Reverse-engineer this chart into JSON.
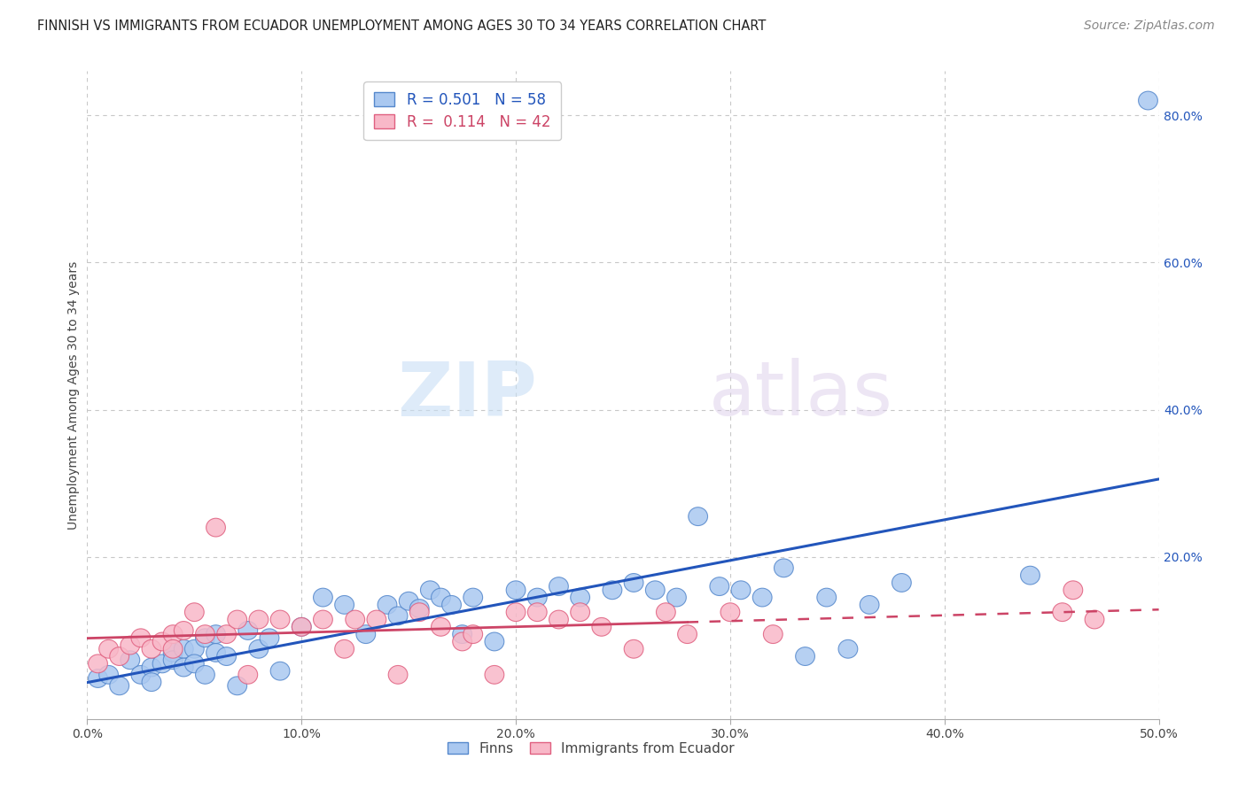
{
  "title": "FINNISH VS IMMIGRANTS FROM ECUADOR UNEMPLOYMENT AMONG AGES 30 TO 34 YEARS CORRELATION CHART",
  "source": "Source: ZipAtlas.com",
  "ylabel": "Unemployment Among Ages 30 to 34 years",
  "xlim": [
    0.0,
    0.5
  ],
  "ylim": [
    -0.02,
    0.86
  ],
  "xtick_labels": [
    "0.0%",
    "10.0%",
    "20.0%",
    "30.0%",
    "40.0%",
    "50.0%"
  ],
  "xtick_values": [
    0.0,
    0.1,
    0.2,
    0.3,
    0.4,
    0.5
  ],
  "ytick_labels": [
    "20.0%",
    "40.0%",
    "60.0%",
    "80.0%"
  ],
  "ytick_values": [
    0.2,
    0.4,
    0.6,
    0.8
  ],
  "background_color": "#ffffff",
  "grid_color": "#c8c8c8",
  "watermark_zip": "ZIP",
  "watermark_atlas": "atlas",
  "legend_R1": "0.501",
  "legend_N1": "58",
  "legend_R2": "0.114",
  "legend_N2": "42",
  "series1_face": "#aac8f0",
  "series1_edge": "#5588cc",
  "series2_face": "#f8b8c8",
  "series2_edge": "#e06080",
  "line1_color": "#2255bb",
  "line2_color": "#cc4466",
  "finns_x": [
    0.005,
    0.01,
    0.015,
    0.02,
    0.025,
    0.03,
    0.03,
    0.035,
    0.04,
    0.04,
    0.045,
    0.045,
    0.05,
    0.05,
    0.055,
    0.055,
    0.06,
    0.06,
    0.065,
    0.07,
    0.075,
    0.08,
    0.085,
    0.09,
    0.1,
    0.11,
    0.12,
    0.13,
    0.14,
    0.145,
    0.15,
    0.155,
    0.16,
    0.165,
    0.17,
    0.175,
    0.18,
    0.19,
    0.2,
    0.21,
    0.22,
    0.23,
    0.245,
    0.255,
    0.265,
    0.275,
    0.285,
    0.295,
    0.305,
    0.315,
    0.325,
    0.335,
    0.345,
    0.355,
    0.365,
    0.38,
    0.44,
    0.495
  ],
  "finns_y": [
    0.035,
    0.04,
    0.025,
    0.06,
    0.04,
    0.05,
    0.03,
    0.055,
    0.07,
    0.06,
    0.075,
    0.05,
    0.075,
    0.055,
    0.04,
    0.09,
    0.07,
    0.095,
    0.065,
    0.025,
    0.1,
    0.075,
    0.09,
    0.045,
    0.105,
    0.145,
    0.135,
    0.095,
    0.135,
    0.12,
    0.14,
    0.13,
    0.155,
    0.145,
    0.135,
    0.095,
    0.145,
    0.085,
    0.155,
    0.145,
    0.16,
    0.145,
    0.155,
    0.165,
    0.155,
    0.145,
    0.255,
    0.16,
    0.155,
    0.145,
    0.185,
    0.065,
    0.145,
    0.075,
    0.135,
    0.165,
    0.175,
    0.82
  ],
  "ecuador_x": [
    0.005,
    0.01,
    0.015,
    0.02,
    0.025,
    0.03,
    0.035,
    0.04,
    0.04,
    0.045,
    0.05,
    0.055,
    0.06,
    0.065,
    0.07,
    0.075,
    0.08,
    0.09,
    0.1,
    0.11,
    0.12,
    0.125,
    0.135,
    0.145,
    0.155,
    0.165,
    0.175,
    0.18,
    0.19,
    0.2,
    0.21,
    0.22,
    0.23,
    0.24,
    0.255,
    0.27,
    0.28,
    0.3,
    0.32,
    0.455,
    0.46,
    0.47
  ],
  "ecuador_y": [
    0.055,
    0.075,
    0.065,
    0.08,
    0.09,
    0.075,
    0.085,
    0.095,
    0.075,
    0.1,
    0.125,
    0.095,
    0.24,
    0.095,
    0.115,
    0.04,
    0.115,
    0.115,
    0.105,
    0.115,
    0.075,
    0.115,
    0.115,
    0.04,
    0.125,
    0.105,
    0.085,
    0.095,
    0.04,
    0.125,
    0.125,
    0.115,
    0.125,
    0.105,
    0.075,
    0.125,
    0.095,
    0.125,
    0.095,
    0.125,
    0.155,
    0.115
  ],
  "title_fontsize": 10.5,
  "axis_label_fontsize": 10,
  "tick_fontsize": 10,
  "legend_fontsize": 12,
  "source_fontsize": 10
}
